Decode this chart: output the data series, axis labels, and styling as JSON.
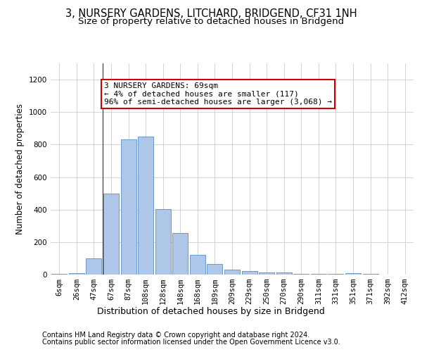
{
  "title": "3, NURSERY GARDENS, LITCHARD, BRIDGEND, CF31 1NH",
  "subtitle": "Size of property relative to detached houses in Bridgend",
  "xlabel": "Distribution of detached houses by size in Bridgend",
  "ylabel": "Number of detached properties",
  "categories": [
    "6sqm",
    "26sqm",
    "47sqm",
    "67sqm",
    "87sqm",
    "108sqm",
    "128sqm",
    "148sqm",
    "168sqm",
    "189sqm",
    "209sqm",
    "229sqm",
    "250sqm",
    "270sqm",
    "290sqm",
    "311sqm",
    "331sqm",
    "351sqm",
    "371sqm",
    "392sqm",
    "412sqm"
  ],
  "values": [
    5,
    10,
    100,
    500,
    830,
    850,
    405,
    255,
    120,
    65,
    30,
    22,
    12,
    12,
    5,
    5,
    3,
    10,
    3,
    2,
    2
  ],
  "bar_color": "#aec6e8",
  "bar_edge_color": "#5a8fc2",
  "highlight_index": 2,
  "highlight_line_color": "#333333",
  "annotation_text": "3 NURSERY GARDENS: 69sqm\n← 4% of detached houses are smaller (117)\n96% of semi-detached houses are larger (3,068) →",
  "annotation_box_color": "#ffffff",
  "annotation_box_edge_color": "#cc0000",
  "ylim": [
    0,
    1300
  ],
  "yticks": [
    0,
    200,
    400,
    600,
    800,
    1000,
    1200
  ],
  "footer_line1": "Contains HM Land Registry data © Crown copyright and database right 2024.",
  "footer_line2": "Contains public sector information licensed under the Open Government Licence v3.0.",
  "background_color": "#ffffff",
  "grid_color": "#cccccc",
  "title_fontsize": 10.5,
  "subtitle_fontsize": 9.5,
  "axis_label_fontsize": 8.5,
  "tick_fontsize": 7.5,
  "annotation_fontsize": 8,
  "footer_fontsize": 7
}
